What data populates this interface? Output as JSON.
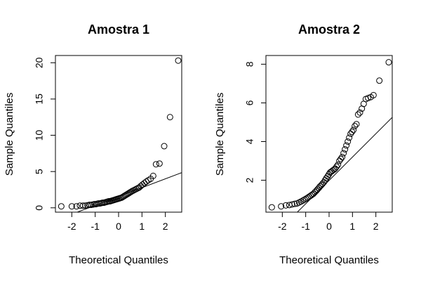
{
  "chart_data": [
    {
      "type": "scatter",
      "title": "Amostra 1",
      "xlabel": "Theoretical Quantiles",
      "ylabel": "Sample Quantiles",
      "xlim": [
        -2.7,
        2.7
      ],
      "ylim": [
        -0.6,
        21
      ],
      "xticks": [
        -2,
        -1,
        0,
        1,
        2
      ],
      "yticks": [
        0,
        5,
        10,
        15,
        20
      ],
      "box": true,
      "grid": false,
      "point_style": "open-circle",
      "series": [
        {
          "x": [
            -2.45,
            -2.0,
            -1.8,
            -1.65,
            -1.52,
            -1.42,
            -1.33,
            -1.25,
            -1.18,
            -1.1,
            -1.04,
            -0.98,
            -0.92,
            -0.86,
            -0.8,
            -0.74,
            -0.69,
            -0.63,
            -0.58,
            -0.52,
            -0.47,
            -0.42,
            -0.37,
            -0.32,
            -0.27,
            -0.22,
            -0.17,
            -0.12,
            -0.07,
            -0.02,
            0.03,
            0.08,
            0.13,
            0.18,
            0.23,
            0.28,
            0.33,
            0.38,
            0.43,
            0.48,
            0.53,
            0.58,
            0.64,
            0.7,
            0.76,
            0.82,
            0.88,
            0.95,
            1.02,
            1.1,
            1.18,
            1.27,
            1.37,
            1.48,
            1.6,
            1.75,
            1.95,
            2.2,
            2.55
          ],
          "y": [
            0.2,
            0.2,
            0.2,
            0.3,
            0.3,
            0.3,
            0.35,
            0.4,
            0.4,
            0.45,
            0.5,
            0.5,
            0.55,
            0.6,
            0.6,
            0.65,
            0.7,
            0.7,
            0.75,
            0.8,
            0.85,
            0.9,
            0.9,
            0.95,
            1.0,
            1.05,
            1.1,
            1.15,
            1.2,
            1.25,
            1.3,
            1.35,
            1.4,
            1.5,
            1.6,
            1.7,
            1.8,
            1.9,
            2.0,
            2.1,
            2.2,
            2.3,
            2.4,
            2.5,
            2.6,
            2.7,
            2.8,
            3.0,
            3.2,
            3.4,
            3.6,
            3.8,
            4.0,
            4.4,
            6.0,
            6.1,
            8.5,
            12.5,
            20.3
          ]
        }
      ],
      "reference_line": {
        "x": [
          -1.85,
          2.7
        ],
        "y": [
          -0.7,
          4.85
        ]
      }
    },
    {
      "type": "scatter",
      "title": "Amostra 2",
      "xlabel": "Theoretical Quantiles",
      "ylabel": "Sample Quantiles",
      "xlim": [
        -2.7,
        2.7
      ],
      "ylim": [
        0.35,
        8.45
      ],
      "xticks": [
        -2,
        -1,
        0,
        1,
        2
      ],
      "yticks": [
        2,
        4,
        6,
        8
      ],
      "box": true,
      "grid": false,
      "point_style": "open-circle",
      "series": [
        {
          "x": [
            -2.45,
            -2.05,
            -1.85,
            -1.7,
            -1.58,
            -1.47,
            -1.37,
            -1.28,
            -1.2,
            -1.12,
            -1.05,
            -0.98,
            -0.91,
            -0.85,
            -0.79,
            -0.73,
            -0.67,
            -0.61,
            -0.55,
            -0.5,
            -0.44,
            -0.39,
            -0.33,
            -0.28,
            -0.22,
            -0.17,
            -0.12,
            -0.06,
            -0.01,
            0.04,
            0.1,
            0.15,
            0.21,
            0.26,
            0.32,
            0.38,
            0.44,
            0.5,
            0.56,
            0.62,
            0.68,
            0.74,
            0.8,
            0.86,
            0.92,
            0.98,
            1.04,
            1.1,
            1.17,
            1.24,
            1.32,
            1.4,
            1.48,
            1.57,
            1.67,
            1.78,
            1.9,
            2.15,
            2.55
          ],
          "y": [
            0.6,
            0.65,
            0.7,
            0.72,
            0.75,
            0.78,
            0.8,
            0.85,
            0.9,
            0.95,
            1.0,
            1.05,
            1.1,
            1.15,
            1.2,
            1.25,
            1.3,
            1.38,
            1.45,
            1.52,
            1.6,
            1.68,
            1.75,
            1.82,
            1.9,
            2.0,
            2.1,
            2.2,
            2.3,
            2.4,
            2.45,
            2.5,
            2.55,
            2.6,
            2.7,
            2.8,
            3.0,
            3.1,
            3.2,
            3.4,
            3.6,
            3.8,
            4.0,
            4.2,
            4.4,
            4.5,
            4.6,
            4.8,
            4.9,
            5.4,
            5.5,
            5.7,
            5.95,
            6.2,
            6.25,
            6.3,
            6.4,
            7.15,
            8.1
          ]
        }
      ],
      "reference_line": {
        "x": [
          -1.4,
          2.7
        ],
        "y": [
          0.3,
          5.25
        ]
      }
    }
  ]
}
